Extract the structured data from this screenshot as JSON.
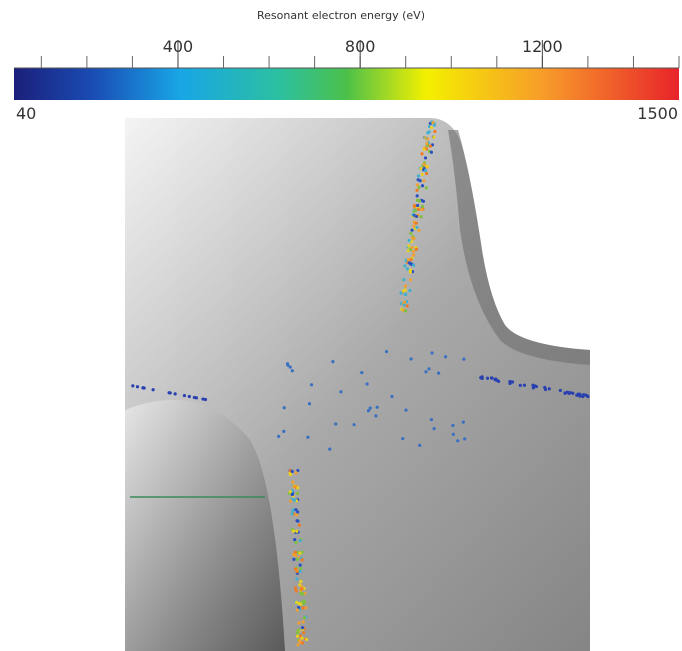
{
  "colorbar": {
    "title": "Resonant electron energy (eV)",
    "min": 40,
    "max": 1500,
    "ticks": [
      400,
      800,
      1200
    ]
  }
}
